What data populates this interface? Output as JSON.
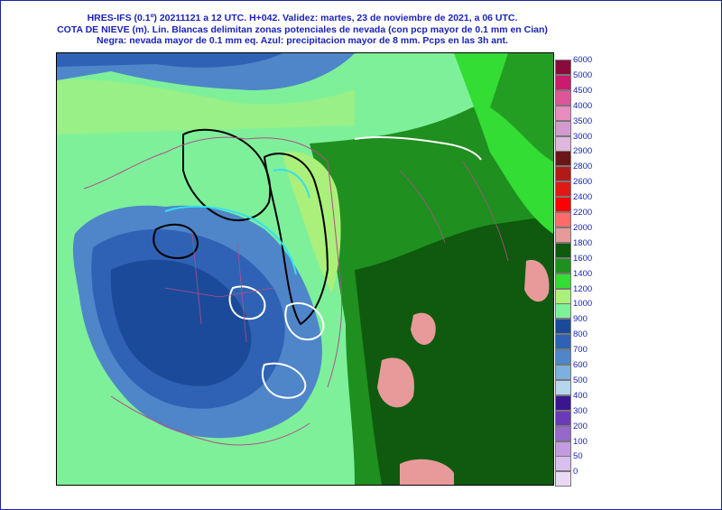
{
  "header": {
    "line1": "HRES-IFS (0.1º) 20211121 a 12 UTC.  H+042. Validez: martes, 23 de noviembre de 2021,  a  06 UTC.",
    "line2": "COTA DE NIEVE (m). Lin. Blancas delimitan zonas potenciales de nevada (con pcp mayor de 0.1 mm en Cian)",
    "line3": "Negra: nevada mayor de 0.1 mm eq. Azul: precipitacion mayor de 8 mm. Pcps en las 3h ant."
  },
  "legend": [
    {
      "label": "6000",
      "color": "#8b0a3c"
    },
    {
      "label": "5000",
      "color": "#cc1a6e"
    },
    {
      "label": "4500",
      "color": "#e0559a"
    },
    {
      "label": "4000",
      "color": "#e88cbf"
    },
    {
      "label": "3500",
      "color": "#d49ad0"
    },
    {
      "label": "3000",
      "color": "#dfb6dd"
    },
    {
      "label": "2900",
      "color": "#6b1616"
    },
    {
      "label": "2800",
      "color": "#b21a1a"
    },
    {
      "label": "2600",
      "color": "#e01818"
    },
    {
      "label": "2400",
      "color": "#ff0000"
    },
    {
      "label": "2200",
      "color": "#ff6b6b"
    },
    {
      "label": "2000",
      "color": "#e89a9a"
    },
    {
      "label": "1800",
      "color": "#0f5a0f"
    },
    {
      "label": "1600",
      "color": "#1f8f1f"
    },
    {
      "label": "1400",
      "color": "#33dd33"
    },
    {
      "label": "1200",
      "color": "#aaf07a"
    },
    {
      "label": "1000",
      "color": "#7ef09a"
    },
    {
      "label": "900",
      "color": "#1c4a9a"
    },
    {
      "label": "800",
      "color": "#2f62b4"
    },
    {
      "label": "700",
      "color": "#4e86c9"
    },
    {
      "label": "600",
      "color": "#7db0de"
    },
    {
      "label": "500",
      "color": "#b6d6ee"
    },
    {
      "label": "400",
      "color": "#3a1590"
    },
    {
      "label": "300",
      "color": "#6a3ab8"
    },
    {
      "label": "200",
      "color": "#9668cc"
    },
    {
      "label": "100",
      "color": "#c29be0"
    },
    {
      "label": "50",
      "color": "#d9bfee"
    },
    {
      "label": "0",
      "color": "#ead9f5"
    }
  ]
}
